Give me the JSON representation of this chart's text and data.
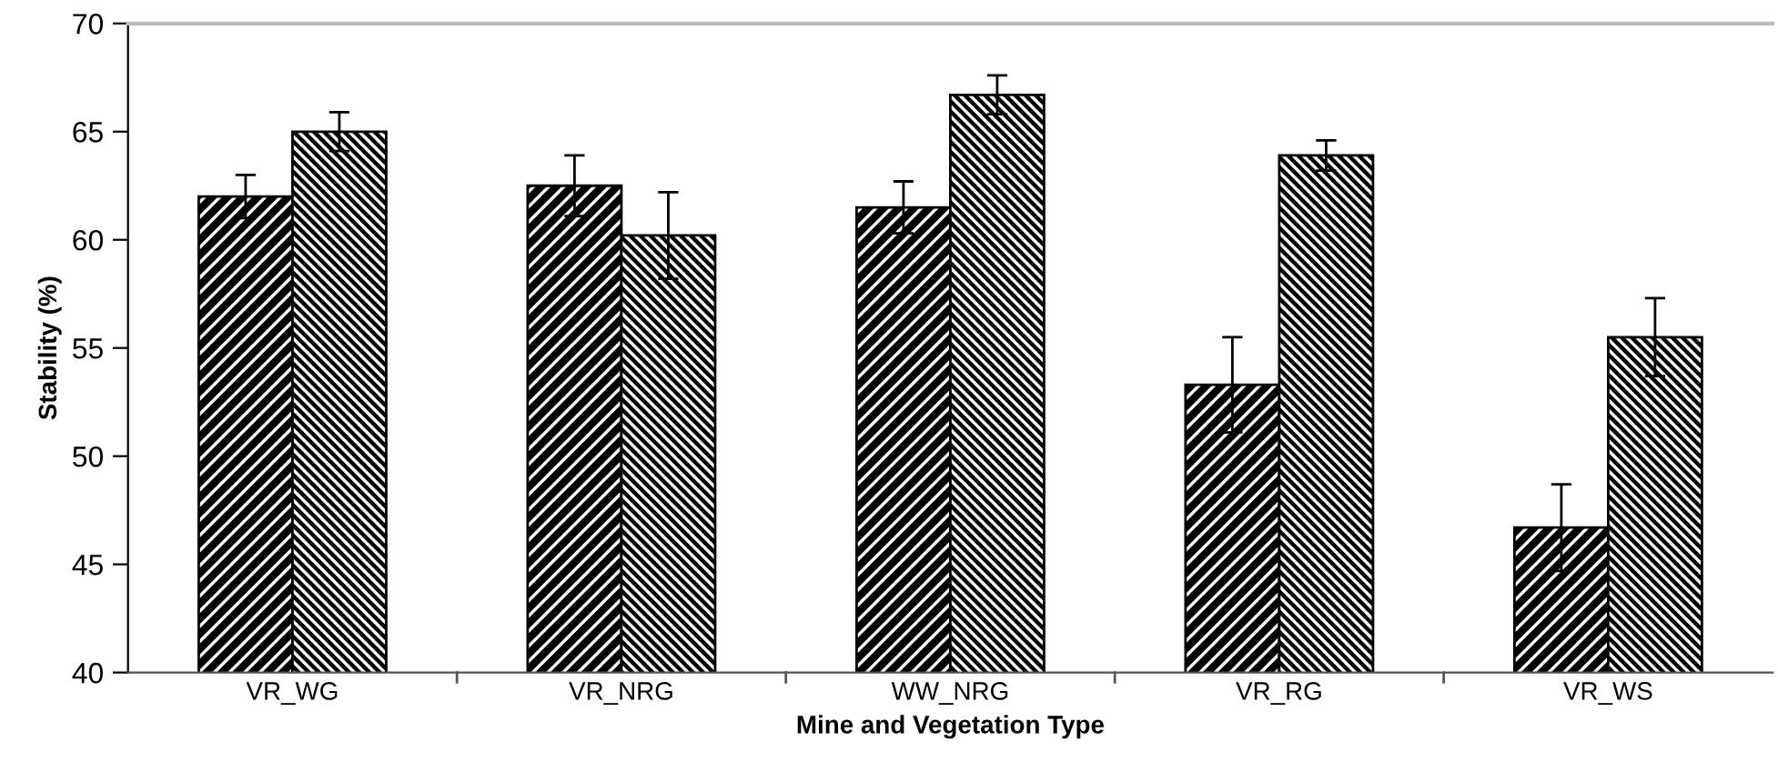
{
  "chart_data": {
    "type": "bar",
    "xlabel": "Mine and Vegetation Type",
    "ylabel": "Stability (%)",
    "categories": [
      "VR_WG",
      "VR_NRG",
      "WW_NRG",
      "VR_RG",
      "VR_WS"
    ],
    "series": [
      {
        "color": "#000000",
        "values": [
          62.0,
          62.5,
          61.5,
          53.3,
          46.7
        ],
        "errors": [
          1.0,
          1.4,
          1.2,
          2.2,
          2.0
        ]
      },
      {
        "color": "#000000",
        "values": [
          65.0,
          60.2,
          66.7,
          63.9,
          55.5
        ],
        "errors": [
          0.9,
          2.0,
          0.9,
          0.7,
          1.8
        ]
      }
    ],
    "ylim": [
      40,
      70
    ],
    "yticks": [
      40,
      45,
      50,
      55,
      60,
      65,
      70
    ],
    "grid": false
  }
}
